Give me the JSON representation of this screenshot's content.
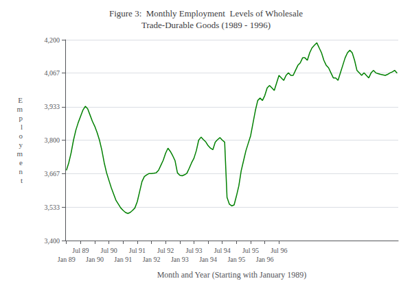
{
  "chart_data": {
    "type": "line",
    "title": "Figure 3:  Monthly Employment  Levels of Wholesale\nTrade-Durable Goods (1989 - 1996)",
    "xlabel": "Month and Year (Starting with January 1989)",
    "ylabel": "E\nm\np\nl\no\ny\nm\ne\nn\nt",
    "color": "#008000",
    "grid": true,
    "ylim": [
      3400,
      4200
    ],
    "yticks": [
      {
        "value": 3400,
        "label": "3,400"
      },
      {
        "value": 3533,
        "label": "3,533"
      },
      {
        "value": 3667,
        "label": "3,667"
      },
      {
        "value": 3800,
        "label": "3,800"
      },
      {
        "value": 3933,
        "label": "3,933"
      },
      {
        "value": 4067,
        "label": "4,067"
      },
      {
        "value": 4200,
        "label": "4,200"
      }
    ],
    "categories": [
      "Jan 89",
      null,
      null,
      null,
      null,
      null,
      "Jul 89",
      null,
      null,
      null,
      null,
      null,
      "Jan 90",
      null,
      null,
      null,
      null,
      null,
      "Jul 90",
      null,
      null,
      null,
      null,
      null,
      "Jan 91",
      null,
      null,
      null,
      null,
      null,
      "Jul 91",
      null,
      null,
      null,
      null,
      null,
      "Jan 92",
      null,
      null,
      null,
      null,
      null,
      "Jul 92",
      null,
      null,
      null,
      null,
      null,
      "Jan 93",
      null,
      null,
      null,
      null,
      null,
      "Jul 93",
      null,
      null,
      null,
      null,
      null,
      "Jan 94",
      null,
      null,
      null,
      null,
      null,
      "Jul 94",
      null,
      null,
      null,
      null,
      null,
      "Jan 95",
      null,
      null,
      null,
      null,
      null,
      "Jul 95",
      null,
      null,
      null,
      null,
      null,
      "Jan 96",
      null,
      null,
      null,
      null,
      null,
      "Jul 96",
      null,
      null,
      null,
      null,
      null,
      null,
      null,
      null,
      null,
      null,
      null,
      null,
      null,
      null,
      null,
      null,
      null,
      null,
      null,
      null,
      null,
      null,
      null,
      null,
      null,
      null,
      null,
      null,
      null,
      null,
      null,
      null,
      null,
      null,
      null,
      null,
      null,
      null,
      null,
      null,
      null,
      null,
      null,
      null,
      null,
      null,
      null,
      null,
      null,
      null
    ],
    "values": [
      3680,
      3710,
      3750,
      3800,
      3840,
      3870,
      3895,
      3920,
      3935,
      3925,
      3900,
      3875,
      3855,
      3830,
      3800,
      3760,
      3710,
      3670,
      3640,
      3610,
      3585,
      3560,
      3545,
      3530,
      3520,
      3512,
      3508,
      3512,
      3520,
      3530,
      3555,
      3595,
      3635,
      3655,
      3662,
      3667,
      3667,
      3668,
      3670,
      3680,
      3700,
      3720,
      3748,
      3768,
      3755,
      3738,
      3718,
      3670,
      3660,
      3658,
      3662,
      3668,
      3688,
      3710,
      3728,
      3758,
      3800,
      3812,
      3802,
      3793,
      3778,
      3768,
      3762,
      3792,
      3802,
      3810,
      3800,
      3792,
      3572,
      3545,
      3538,
      3542,
      3578,
      3618,
      3678,
      3718,
      3758,
      3788,
      3818,
      3868,
      3918,
      3958,
      3968,
      3958,
      3978,
      4008,
      4018,
      4008,
      3998,
      4028,
      4058,
      4048,
      4038,
      4058,
      4068,
      4058,
      4058,
      4078,
      4098,
      4108,
      4128,
      4128,
      4118,
      4148,
      4168,
      4178,
      4188,
      4168,
      4148,
      4118,
      4098,
      4088,
      4068,
      4048,
      4048,
      4038,
      4068,
      4098,
      4128,
      4148,
      4158,
      4148,
      4118,
      4078,
      4068,
      4058,
      4068,
      4058,
      4048,
      4068,
      4078,
      4068,
      4065,
      4062,
      4060,
      4058,
      4062,
      4068,
      4072,
      4078,
      4067
    ]
  }
}
